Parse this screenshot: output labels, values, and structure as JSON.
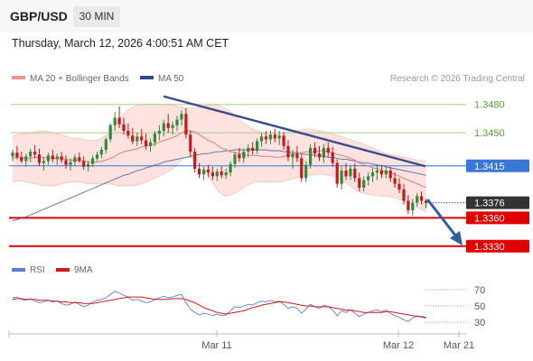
{
  "header": {
    "symbol": "GBP/USD",
    "timeframe_button": "30 MIN",
    "datetime": "Thursday, March 12, 2026 4:00:51 AM CET"
  },
  "legend": {
    "ma20": "MA 20 + Bollinger Bands",
    "ma50": "MA 50",
    "attribution": "Research © 2026 Trading Central",
    "rsi": "RSI",
    "rsi_ma": "9MA"
  },
  "colors": {
    "bull": "#2e8b3a",
    "bear": "#c21a1a",
    "bb_fill": "#fde2e0",
    "ma20": "#e57a7a",
    "ma50": "#3a5ca0",
    "trendline": "#3a4c8c",
    "arrow": "#2f5f9e",
    "resistance": "#a8d08a",
    "pivot_line": "#3a78d8",
    "support": "#e00000",
    "price_tag": "#333333",
    "rsi_line": "#5b7ed6",
    "rsi_ma_line": "#d11a1a"
  },
  "chart_data": {
    "type": "candlestick",
    "y_range": [
      1.3325,
      1.3495
    ],
    "x_labels": [
      "Mar 11",
      "Mar 12",
      "Mar 21"
    ],
    "levels": [
      {
        "role": "resistance",
        "label": "1.3480",
        "value": 1.348
      },
      {
        "role": "resistance",
        "label": "1.3450",
        "value": 1.345
      },
      {
        "role": "pivot",
        "label": "1.3415",
        "value": 1.3415
      },
      {
        "role": "last",
        "label": "1.3376",
        "value": 1.3376
      },
      {
        "role": "support",
        "label": "1.3360",
        "value": 1.336
      },
      {
        "role": "support",
        "label": "1.3330",
        "value": 1.333
      }
    ],
    "rsi_axis": {
      "labels": [
        "70",
        "50",
        "30"
      ],
      "values": [
        70,
        50,
        30
      ],
      "range": [
        20,
        80
      ]
    },
    "candles": [
      [
        1.3425,
        1.3432,
        1.342,
        1.3429
      ],
      [
        1.3429,
        1.3436,
        1.3422,
        1.3424
      ],
      [
        1.3424,
        1.343,
        1.3418,
        1.342
      ],
      [
        1.342,
        1.3428,
        1.3414,
        1.3425
      ],
      [
        1.3425,
        1.3433,
        1.3419,
        1.343
      ],
      [
        1.343,
        1.3437,
        1.3423,
        1.3427
      ],
      [
        1.3427,
        1.3433,
        1.3415,
        1.3418
      ],
      [
        1.3418,
        1.3424,
        1.341,
        1.342
      ],
      [
        1.342,
        1.3429,
        1.3416,
        1.3426
      ],
      [
        1.3426,
        1.3432,
        1.3419,
        1.3422
      ],
      [
        1.3422,
        1.3428,
        1.3416,
        1.3425
      ],
      [
        1.3425,
        1.343,
        1.3418,
        1.3421
      ],
      [
        1.3421,
        1.3426,
        1.3412,
        1.3416
      ],
      [
        1.3416,
        1.3423,
        1.341,
        1.3419
      ],
      [
        1.3419,
        1.3427,
        1.3415,
        1.3424
      ],
      [
        1.3424,
        1.3429,
        1.3418,
        1.342
      ],
      [
        1.342,
        1.3425,
        1.3411,
        1.3414
      ],
      [
        1.3414,
        1.342,
        1.3409,
        1.3417
      ],
      [
        1.3417,
        1.3426,
        1.3414,
        1.3423
      ],
      [
        1.3423,
        1.343,
        1.342,
        1.3427
      ],
      [
        1.3427,
        1.3435,
        1.3423,
        1.3432
      ],
      [
        1.3432,
        1.3445,
        1.3428,
        1.3443
      ],
      [
        1.3443,
        1.346,
        1.344,
        1.3458
      ],
      [
        1.3458,
        1.3472,
        1.3452,
        1.3466
      ],
      [
        1.3466,
        1.3478,
        1.3455,
        1.3459
      ],
      [
        1.3459,
        1.3466,
        1.3448,
        1.3452
      ],
      [
        1.3452,
        1.346,
        1.3444,
        1.3447
      ],
      [
        1.3447,
        1.3455,
        1.3438,
        1.3441
      ],
      [
        1.3441,
        1.345,
        1.3436,
        1.3446
      ],
      [
        1.3446,
        1.3454,
        1.3438,
        1.3442
      ],
      [
        1.3442,
        1.3449,
        1.3432,
        1.3436
      ],
      [
        1.3436,
        1.3444,
        1.343,
        1.344
      ],
      [
        1.344,
        1.3452,
        1.3436,
        1.3449
      ],
      [
        1.3449,
        1.3458,
        1.3442,
        1.3452
      ],
      [
        1.3452,
        1.3464,
        1.3446,
        1.346
      ],
      [
        1.346,
        1.347,
        1.345,
        1.3455
      ],
      [
        1.3455,
        1.3462,
        1.3448,
        1.3458
      ],
      [
        1.3458,
        1.3468,
        1.3452,
        1.3464
      ],
      [
        1.3464,
        1.3474,
        1.3458,
        1.347
      ],
      [
        1.347,
        1.3476,
        1.3444,
        1.3448
      ],
      [
        1.3448,
        1.3452,
        1.3425,
        1.343
      ],
      [
        1.343,
        1.3434,
        1.3408,
        1.3412
      ],
      [
        1.3412,
        1.3418,
        1.3402,
        1.3406
      ],
      [
        1.3406,
        1.3414,
        1.34,
        1.3411
      ],
      [
        1.3411,
        1.3416,
        1.3403,
        1.3408
      ],
      [
        1.3408,
        1.3414,
        1.34,
        1.3404
      ],
      [
        1.3404,
        1.3412,
        1.3399,
        1.3409
      ],
      [
        1.3409,
        1.3415,
        1.3402,
        1.3405
      ],
      [
        1.3405,
        1.3412,
        1.3401,
        1.3408
      ],
      [
        1.3408,
        1.342,
        1.3404,
        1.3417
      ],
      [
        1.3417,
        1.343,
        1.3413,
        1.3427
      ],
      [
        1.3427,
        1.3434,
        1.3419,
        1.3423
      ],
      [
        1.3423,
        1.3433,
        1.3418,
        1.343
      ],
      [
        1.343,
        1.3438,
        1.3424,
        1.3434
      ],
      [
        1.3434,
        1.344,
        1.3427,
        1.3431
      ],
      [
        1.3431,
        1.3444,
        1.3428,
        1.3441
      ],
      [
        1.3441,
        1.345,
        1.3435,
        1.3446
      ],
      [
        1.3446,
        1.3452,
        1.3438,
        1.3443
      ],
      [
        1.3443,
        1.3452,
        1.3438,
        1.3448
      ],
      [
        1.3448,
        1.3454,
        1.344,
        1.3444
      ],
      [
        1.3444,
        1.3452,
        1.3437,
        1.3447
      ],
      [
        1.3447,
        1.3451,
        1.3432,
        1.3436
      ],
      [
        1.3436,
        1.3442,
        1.342,
        1.3424
      ],
      [
        1.3424,
        1.3432,
        1.3412,
        1.3428
      ],
      [
        1.3428,
        1.3436,
        1.3419,
        1.3423
      ],
      [
        1.3423,
        1.3428,
        1.3398,
        1.3402
      ],
      [
        1.3402,
        1.342,
        1.3398,
        1.3416
      ],
      [
        1.3416,
        1.3438,
        1.3412,
        1.3434
      ],
      [
        1.3434,
        1.344,
        1.3424,
        1.3428
      ],
      [
        1.3428,
        1.3436,
        1.342,
        1.3424
      ],
      [
        1.3424,
        1.3438,
        1.3418,
        1.3434
      ],
      [
        1.3434,
        1.344,
        1.3424,
        1.3429
      ],
      [
        1.3429,
        1.3435,
        1.3414,
        1.3418
      ],
      [
        1.3418,
        1.3422,
        1.3392,
        1.3396
      ],
      [
        1.3396,
        1.3414,
        1.339,
        1.341
      ],
      [
        1.341,
        1.3418,
        1.34,
        1.3404
      ],
      [
        1.3404,
        1.3416,
        1.34,
        1.3412
      ],
      [
        1.3412,
        1.3418,
        1.3398,
        1.3402
      ],
      [
        1.3402,
        1.3408,
        1.3388,
        1.3392
      ],
      [
        1.3392,
        1.3404,
        1.3388,
        1.34
      ],
      [
        1.34,
        1.3408,
        1.3394,
        1.3404
      ],
      [
        1.3404,
        1.3412,
        1.3398,
        1.3408
      ],
      [
        1.3408,
        1.3416,
        1.34,
        1.341
      ],
      [
        1.341,
        1.3416,
        1.3402,
        1.3406
      ],
      [
        1.3406,
        1.3414,
        1.3402,
        1.341
      ],
      [
        1.341,
        1.3414,
        1.3398,
        1.3402
      ],
      [
        1.3402,
        1.3408,
        1.3392,
        1.3396
      ],
      [
        1.3396,
        1.3402,
        1.3386,
        1.339
      ],
      [
        1.339,
        1.3396,
        1.3374,
        1.3378
      ],
      [
        1.3378,
        1.3384,
        1.3364,
        1.3368
      ],
      [
        1.3368,
        1.338,
        1.3362,
        1.3376
      ],
      [
        1.3376,
        1.3386,
        1.3372,
        1.3383
      ],
      [
        1.3383,
        1.3388,
        1.3374,
        1.3378
      ],
      [
        1.3378,
        1.338,
        1.337,
        1.3376
      ]
    ],
    "ma20": [
      1.3423,
      1.3424,
      1.3424,
      1.3423,
      1.3423,
      1.3424,
      1.3424,
      1.3424,
      1.3423,
      1.3423,
      1.3423,
      1.3423,
      1.3422,
      1.3421,
      1.3421,
      1.3421,
      1.342,
      1.3419,
      1.3419,
      1.3419,
      1.342,
      1.3421,
      1.3423,
      1.3425,
      1.3428,
      1.343,
      1.3431,
      1.3432,
      1.3433,
      1.3435,
      1.3436,
      1.3437,
      1.3438,
      1.344,
      1.3442,
      1.3443,
      1.3445,
      1.3447,
      1.345,
      1.3452,
      1.3452,
      1.3451,
      1.3448,
      1.3445,
      1.3442,
      1.344,
      1.3437,
      1.3434,
      1.3432,
      1.343,
      1.3429,
      1.3428,
      1.3427,
      1.3426,
      1.3426,
      1.3426,
      1.3425,
      1.3425,
      1.3425,
      1.3424,
      1.3424,
      1.3425,
      1.3426,
      1.3427,
      1.3428,
      1.3429,
      1.343,
      1.343,
      1.343,
      1.3431,
      1.3431,
      1.343,
      1.3429,
      1.3427,
      1.3426,
      1.3425,
      1.3423,
      1.3421,
      1.3418,
      1.3416,
      1.3415,
      1.3413,
      1.3412,
      1.341,
      1.3409,
      1.3408,
      1.3406,
      1.3404,
      1.3402,
      1.34,
      1.3398,
      1.3396,
      1.3394,
      1.3392
    ],
    "bb_upper": [
      1.3446,
      1.3448,
      1.3449,
      1.3449,
      1.345,
      1.3451,
      1.3452,
      1.3452,
      1.3451,
      1.345,
      1.3449,
      1.3448,
      1.3446,
      1.3445,
      1.3444,
      1.3444,
      1.3443,
      1.3442,
      1.3442,
      1.3442,
      1.3444,
      1.3447,
      1.3451,
      1.3458,
      1.3465,
      1.347,
      1.3474,
      1.3477,
      1.3479,
      1.348,
      1.348,
      1.348,
      1.348,
      1.348,
      1.348,
      1.348,
      1.3479,
      1.3478,
      1.3477,
      1.3476,
      1.3476,
      1.3476,
      1.3477,
      1.3478,
      1.3479,
      1.348,
      1.348,
      1.3478,
      1.3475,
      1.3472,
      1.3468,
      1.3464,
      1.346,
      1.3457,
      1.3454,
      1.3452,
      1.3451,
      1.345,
      1.345,
      1.345,
      1.345,
      1.345,
      1.3451,
      1.3452,
      1.3453,
      1.3453,
      1.3454,
      1.3454,
      1.3453,
      1.3452,
      1.3451,
      1.345,
      1.3449,
      1.3447,
      1.3446,
      1.3444,
      1.3443,
      1.3441,
      1.344,
      1.3438,
      1.3436,
      1.3434,
      1.3432,
      1.343,
      1.3428,
      1.3427,
      1.3426,
      1.3425,
      1.3424,
      1.3423,
      1.3422,
      1.3421,
      1.342,
      1.342
    ],
    "bb_lower": [
      1.3398,
      1.3399,
      1.3399,
      1.3398,
      1.3397,
      1.3396,
      1.3395,
      1.3394,
      1.3394,
      1.3394,
      1.3395,
      1.3396,
      1.3397,
      1.3398,
      1.3398,
      1.3398,
      1.3397,
      1.3396,
      1.3396,
      1.3396,
      1.3396,
      1.3396,
      1.3396,
      1.3395,
      1.3394,
      1.3394,
      1.3394,
      1.3394,
      1.3395,
      1.3396,
      1.3398,
      1.34,
      1.3402,
      1.3404,
      1.3406,
      1.3409,
      1.3412,
      1.3416,
      1.3422,
      1.3424,
      1.3424,
      1.3422,
      1.3418,
      1.3411,
      1.3404,
      1.3397,
      1.339,
      1.3385,
      1.3383,
      1.3384,
      1.3386,
      1.3389,
      1.3392,
      1.3395,
      1.3397,
      1.3398,
      1.3398,
      1.3398,
      1.3398,
      1.3398,
      1.3398,
      1.3399,
      1.34,
      1.3401,
      1.3403,
      1.3404,
      1.3405,
      1.3405,
      1.3406,
      1.3406,
      1.3406,
      1.3405,
      1.3404,
      1.3402,
      1.3399,
      1.3397,
      1.3394,
      1.339,
      1.3387,
      1.3386,
      1.3385,
      1.3384,
      1.3384,
      1.3383,
      1.3383,
      1.3382,
      1.3381,
      1.338,
      1.3378,
      1.3375,
      1.3373,
      1.3371,
      1.3369,
      1.3366
    ],
    "ma50": [
      1.3357,
      1.3358,
      1.336,
      1.3361,
      1.3363,
      1.3365,
      1.3367,
      1.3369,
      1.3371,
      1.3373,
      1.3375,
      1.3377,
      1.3379,
      1.3381,
      1.3383,
      1.3385,
      1.3387,
      1.3389,
      1.3391,
      1.3393,
      1.3395,
      1.3397,
      1.3399,
      1.3401,
      1.3403,
      1.3405,
      1.3406,
      1.3408,
      1.341,
      1.3411,
      1.3413,
      1.3414,
      1.3416,
      1.3417,
      1.3419,
      1.342,
      1.3421,
      1.3422,
      1.3423,
      1.3424,
      1.3425,
      1.3426,
      1.3427,
      1.3428,
      1.3428,
      1.3429,
      1.343,
      1.343,
      1.3431,
      1.3431,
      1.3432,
      1.3432,
      1.3432,
      1.3432,
      1.3432,
      1.3432,
      1.3432,
      1.3432,
      1.3431,
      1.3431,
      1.3431,
      1.343,
      1.343,
      1.3429,
      1.3429,
      1.3428,
      1.3427,
      1.3427,
      1.3426,
      1.3426,
      1.3425,
      1.3424,
      1.3424,
      1.3423,
      1.3422,
      1.3422,
      1.3421,
      1.342,
      1.3419,
      1.3418,
      1.3418,
      1.3417,
      1.3416,
      1.3415,
      1.3414,
      1.3413,
      1.3412,
      1.3411,
      1.341,
      1.3409,
      1.3408,
      1.3407,
      1.3406,
      1.3405
    ],
    "rsi": [
      60,
      61,
      58,
      57,
      59,
      56,
      54,
      55,
      57,
      55,
      56,
      53,
      51,
      52,
      55,
      52,
      49,
      51,
      55,
      57,
      58,
      60,
      64,
      68,
      66,
      63,
      61,
      57,
      58,
      56,
      54,
      55,
      58,
      60,
      62,
      60,
      61,
      63,
      64,
      54,
      46,
      42,
      39,
      41,
      40,
      38,
      40,
      38,
      39,
      44,
      49,
      48,
      50,
      52,
      51,
      54,
      56,
      55,
      57,
      55,
      56,
      52,
      47,
      49,
      47,
      41,
      46,
      52,
      49,
      47,
      51,
      49,
      45,
      38,
      44,
      42,
      45,
      41,
      37,
      40,
      42,
      44,
      45,
      43,
      45,
      41,
      38,
      36,
      33,
      31,
      35,
      38,
      36,
      35
    ],
    "rsi_ma": [
      58,
      59,
      59,
      58,
      58,
      58,
      57,
      57,
      57,
      56,
      56,
      55,
      55,
      54,
      54,
      54,
      53,
      53,
      53,
      54,
      55,
      56,
      57,
      58,
      59,
      60,
      61,
      61,
      61,
      61,
      60,
      59,
      58,
      58,
      58,
      58,
      59,
      59,
      59,
      58,
      56,
      54,
      51,
      48,
      46,
      44,
      42,
      41,
      40,
      41,
      42,
      43,
      44,
      46,
      48,
      49,
      51,
      52,
      53,
      54,
      55,
      55,
      54,
      53,
      52,
      51,
      50,
      50,
      49,
      49,
      49,
      49,
      48,
      47,
      46,
      45,
      45,
      44,
      43,
      42,
      42,
      42,
      42,
      42,
      43,
      43,
      42,
      41,
      40,
      39,
      38,
      37,
      37,
      36
    ]
  }
}
